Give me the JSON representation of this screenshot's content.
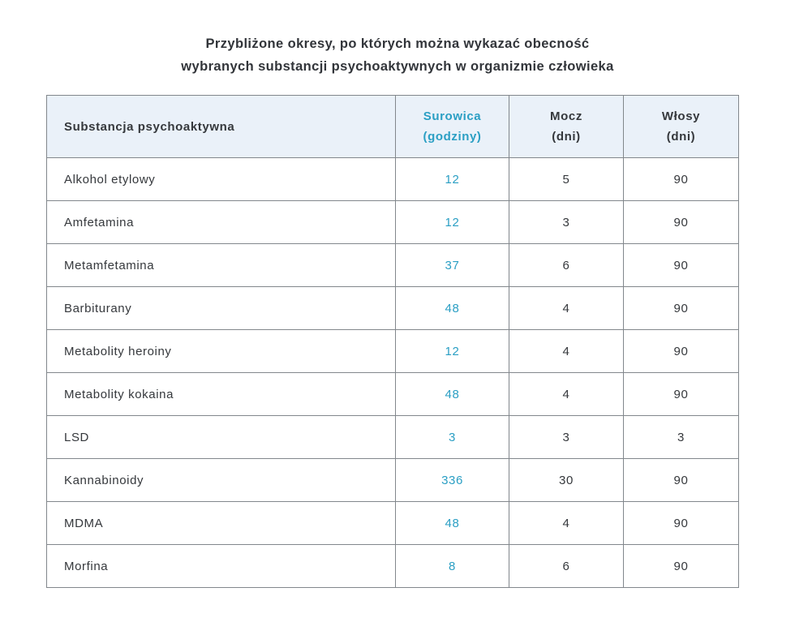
{
  "title": {
    "line1": "Przybliżone okresy, po których można wykazać obecność",
    "line2": "wybranych substancji psychoaktywnych w organizmie człowieka"
  },
  "colors": {
    "accent_teal": "#2b9fc4",
    "header_background": "#eaf1f9",
    "border": "#82878c",
    "text": "#35383c"
  },
  "table": {
    "columns": {
      "substance": {
        "line1": "Substancja psychoaktywna",
        "line2": ""
      },
      "serum": {
        "line1": "Surowica",
        "line2": "(godziny)"
      },
      "urine": {
        "line1": "Mocz",
        "line2": "(dni)"
      },
      "hair": {
        "line1": "Włosy",
        "line2": "(dni)"
      }
    },
    "rows": [
      {
        "substance": "Alkohol etylowy",
        "serum_hours": "12",
        "urine_days": "5",
        "hair_days": "90"
      },
      {
        "substance": "Amfetamina",
        "serum_hours": "12",
        "urine_days": "3",
        "hair_days": "90"
      },
      {
        "substance": "Metamfetamina",
        "serum_hours": "37",
        "urine_days": "6",
        "hair_days": "90"
      },
      {
        "substance": "Barbiturany",
        "serum_hours": "48",
        "urine_days": "4",
        "hair_days": "90"
      },
      {
        "substance": "Metabolity heroiny",
        "serum_hours": "12",
        "urine_days": "4",
        "hair_days": "90"
      },
      {
        "substance": "Metabolity kokaina",
        "serum_hours": "48",
        "urine_days": "4",
        "hair_days": "90"
      },
      {
        "substance": "LSD",
        "serum_hours": "3",
        "urine_days": "3",
        "hair_days": "3"
      },
      {
        "substance": "Kannabinoidy",
        "serum_hours": "336",
        "urine_days": "30",
        "hair_days": "90"
      },
      {
        "substance": "MDMA",
        "serum_hours": "48",
        "urine_days": "4",
        "hair_days": "90"
      },
      {
        "substance": "Morfina",
        "serum_hours": "8",
        "urine_days": "6",
        "hair_days": "90"
      }
    ]
  }
}
